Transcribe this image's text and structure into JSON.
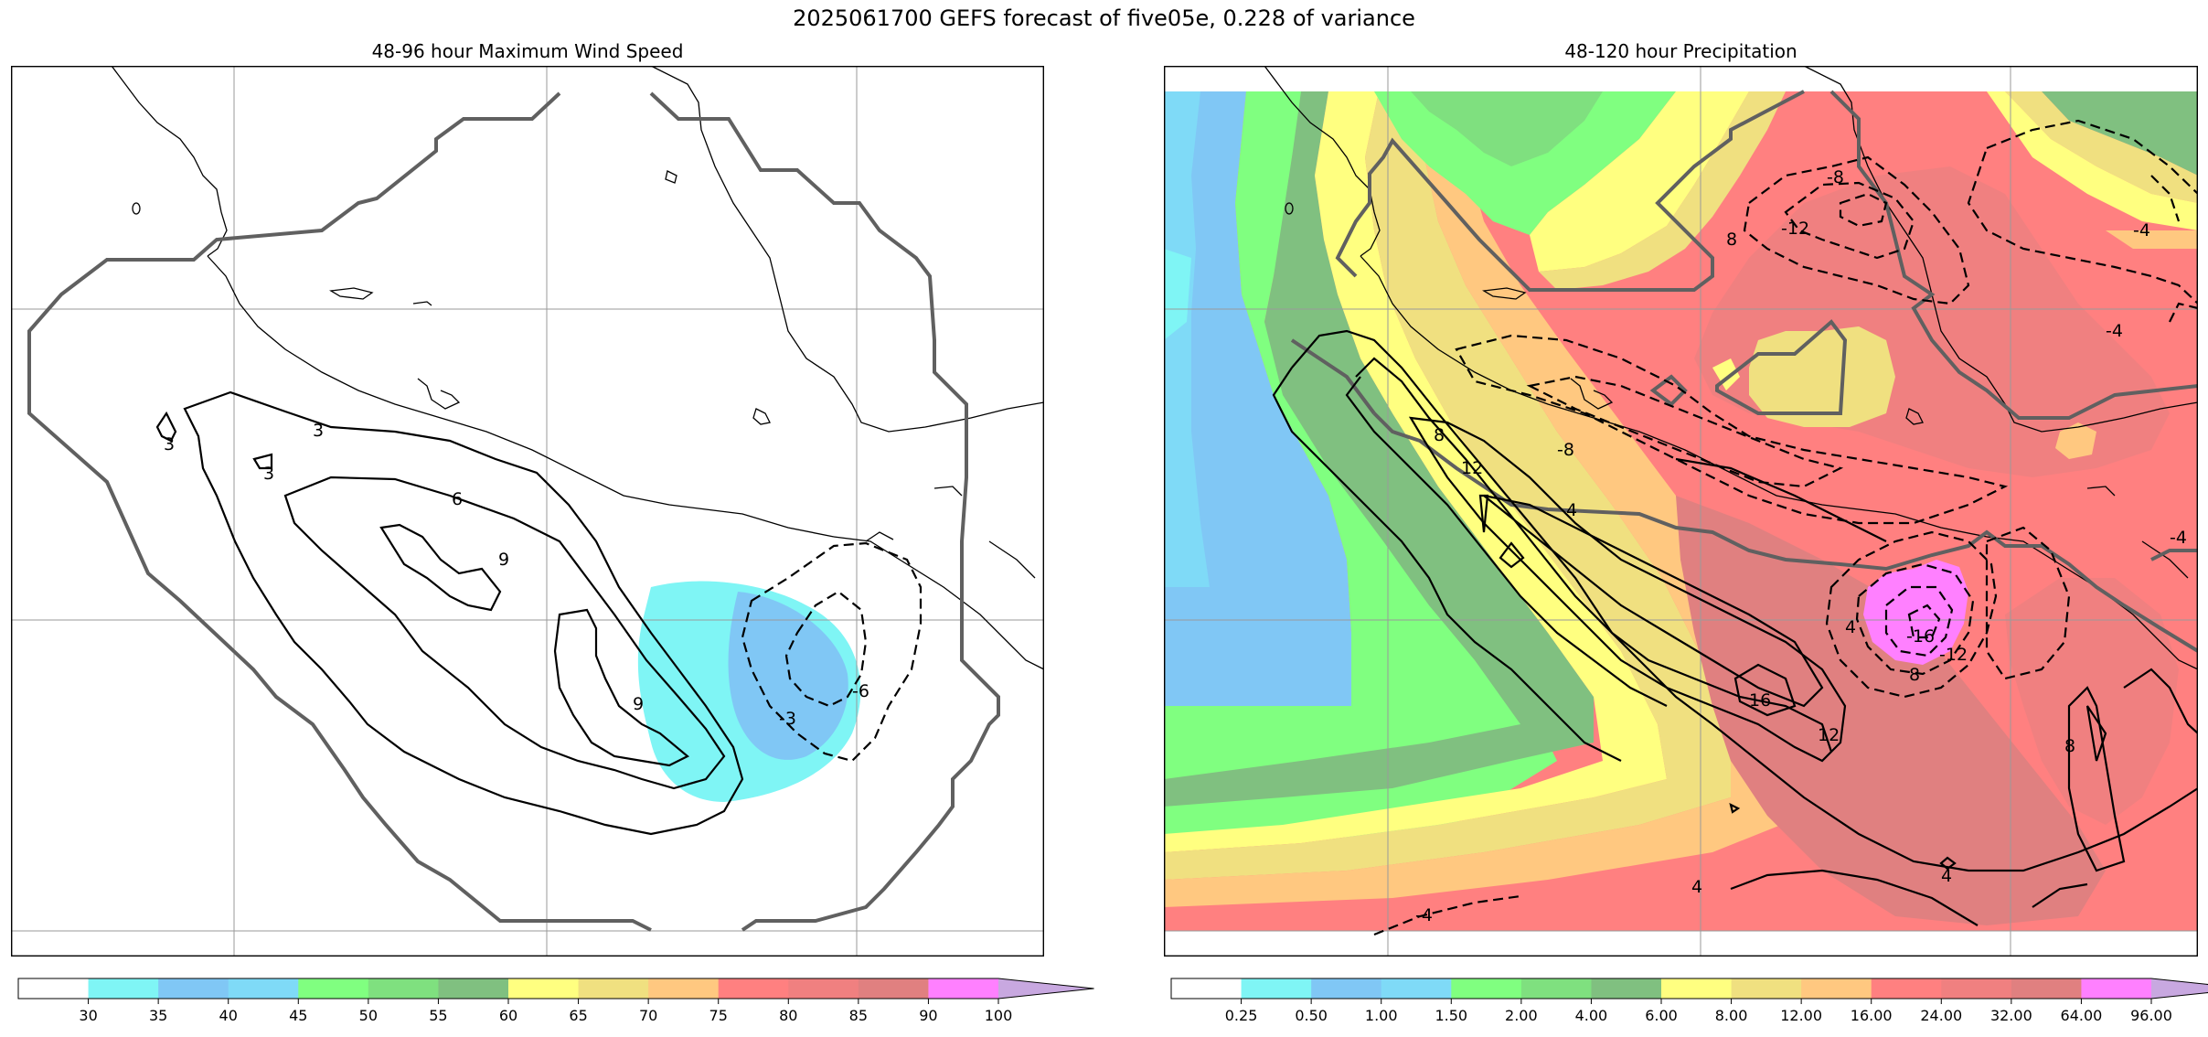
{
  "title": "2025061700 GEFS forecast of five05e, 0.228 of variance",
  "left_panel": {
    "title": "48-96 hour Maximum Wind Speed",
    "contour_labels": [
      "3",
      "3",
      "3",
      "6",
      "9",
      "9",
      "-3",
      "-6"
    ],
    "colorbar": {
      "ticks": [
        "30",
        "35",
        "40",
        "45",
        "50",
        "55",
        "60",
        "65",
        "70",
        "75",
        "80",
        "85",
        "90",
        "100"
      ],
      "colors": [
        "#ffffff",
        "#7ff5f5",
        "#80c7f5",
        "#7fdaf7",
        "#80ff80",
        "#7fe07f",
        "#80c080",
        "#ffff80",
        "#f0e080",
        "#ffc880",
        "#ff8080",
        "#f08080",
        "#e08080",
        "#ff80ff",
        "#c8a8e0"
      ]
    }
  },
  "right_panel": {
    "title": "48-120 hour Precipitation",
    "contour_labels": [
      "-8",
      "-12",
      "8",
      "-4",
      "-4",
      "-8",
      "8",
      "12",
      "4",
      "4",
      "16",
      "12",
      "-16",
      "-12",
      "8",
      "8",
      "4",
      "4",
      "-4",
      "-4"
    ],
    "colorbar": {
      "ticks": [
        "0.25",
        "0.50",
        "1.00",
        "1.50",
        "2.00",
        "4.00",
        "6.00",
        "8.00",
        "12.00",
        "16.00",
        "24.00",
        "32.00",
        "64.00",
        "96.00"
      ],
      "colors": [
        "#ffffff",
        "#7ff5f5",
        "#80c7f5",
        "#7fdaf7",
        "#80ff80",
        "#7fe07f",
        "#80c080",
        "#ffff80",
        "#f0e080",
        "#ffc880",
        "#ff8080",
        "#f08080",
        "#e08080",
        "#ff80ff",
        "#c8a8e0"
      ]
    }
  }
}
